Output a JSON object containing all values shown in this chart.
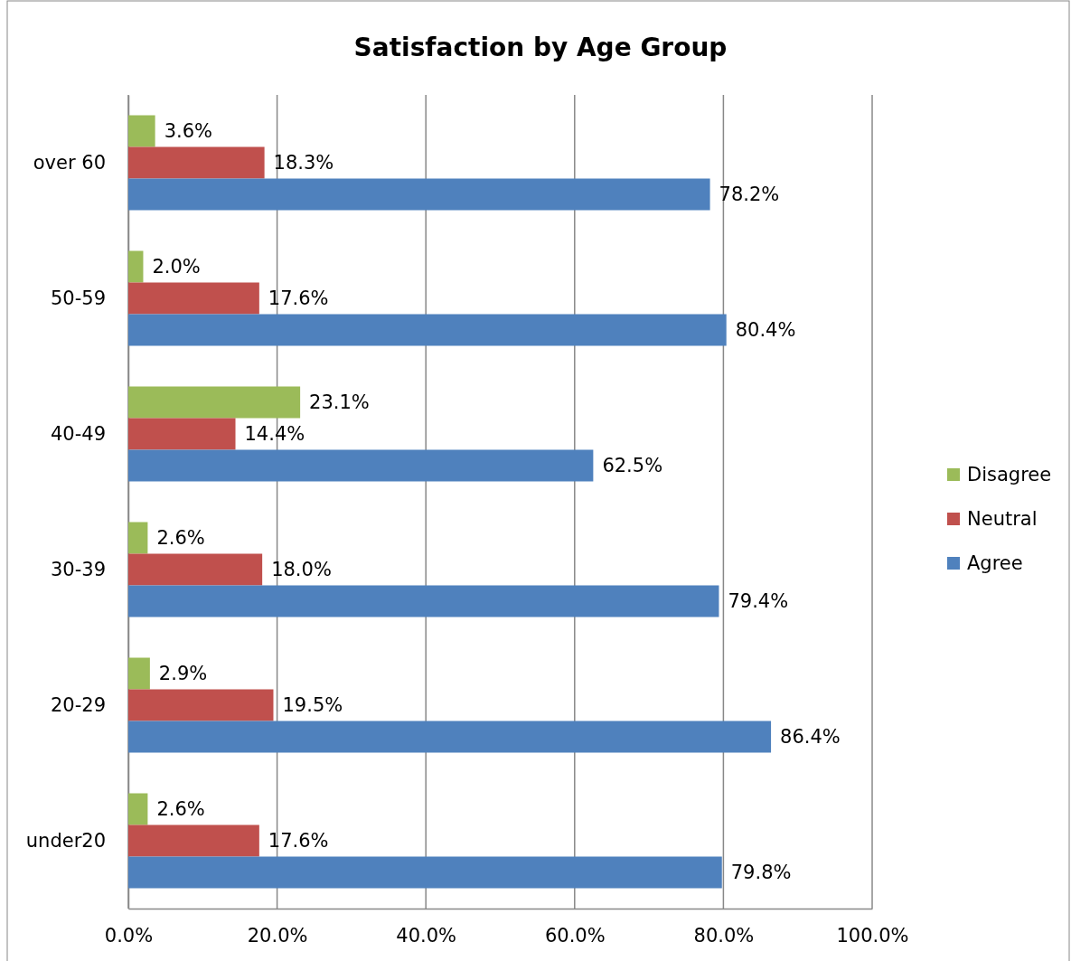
{
  "chart_data": {
    "type": "bar",
    "orientation": "horizontal",
    "title": "Satisfaction by Age Group",
    "categories": [
      "over 60",
      "50-59",
      "40-49",
      "30-39",
      "20-29",
      "under20"
    ],
    "series": [
      {
        "name": "Disagree",
        "color": "#9bbb59",
        "values": [
          3.6,
          2.0,
          23.1,
          2.6,
          2.9,
          2.6
        ],
        "value_labels": [
          "3.6%",
          "2.0%",
          "23.1%",
          "2.6%",
          "2.9%",
          "2.6%"
        ]
      },
      {
        "name": "Neutral",
        "color": "#c0504d",
        "values": [
          18.3,
          17.6,
          14.4,
          18.0,
          19.5,
          17.6
        ],
        "value_labels": [
          "18.3%",
          "17.6%",
          "14.4%",
          "18.0%",
          "19.5%",
          "17.6%"
        ]
      },
      {
        "name": "Agree",
        "color": "#4f81bd",
        "values": [
          78.2,
          80.4,
          62.5,
          79.4,
          86.4,
          79.8
        ],
        "value_labels": [
          "78.2%",
          "80.4%",
          "62.5%",
          "79.4%",
          "86.4%",
          "79.8%"
        ]
      }
    ],
    "xlim": [
      0,
      100
    ],
    "xticks": [
      {
        "value": 0,
        "label": "0.0%"
      },
      {
        "value": 20,
        "label": "20.0%"
      },
      {
        "value": 40,
        "label": "40.0%"
      },
      {
        "value": 60,
        "label": "60.0%"
      },
      {
        "value": 80,
        "label": "80.0%"
      },
      {
        "value": 100,
        "label": "100.0%"
      }
    ],
    "grid": "x",
    "legend": "right"
  }
}
